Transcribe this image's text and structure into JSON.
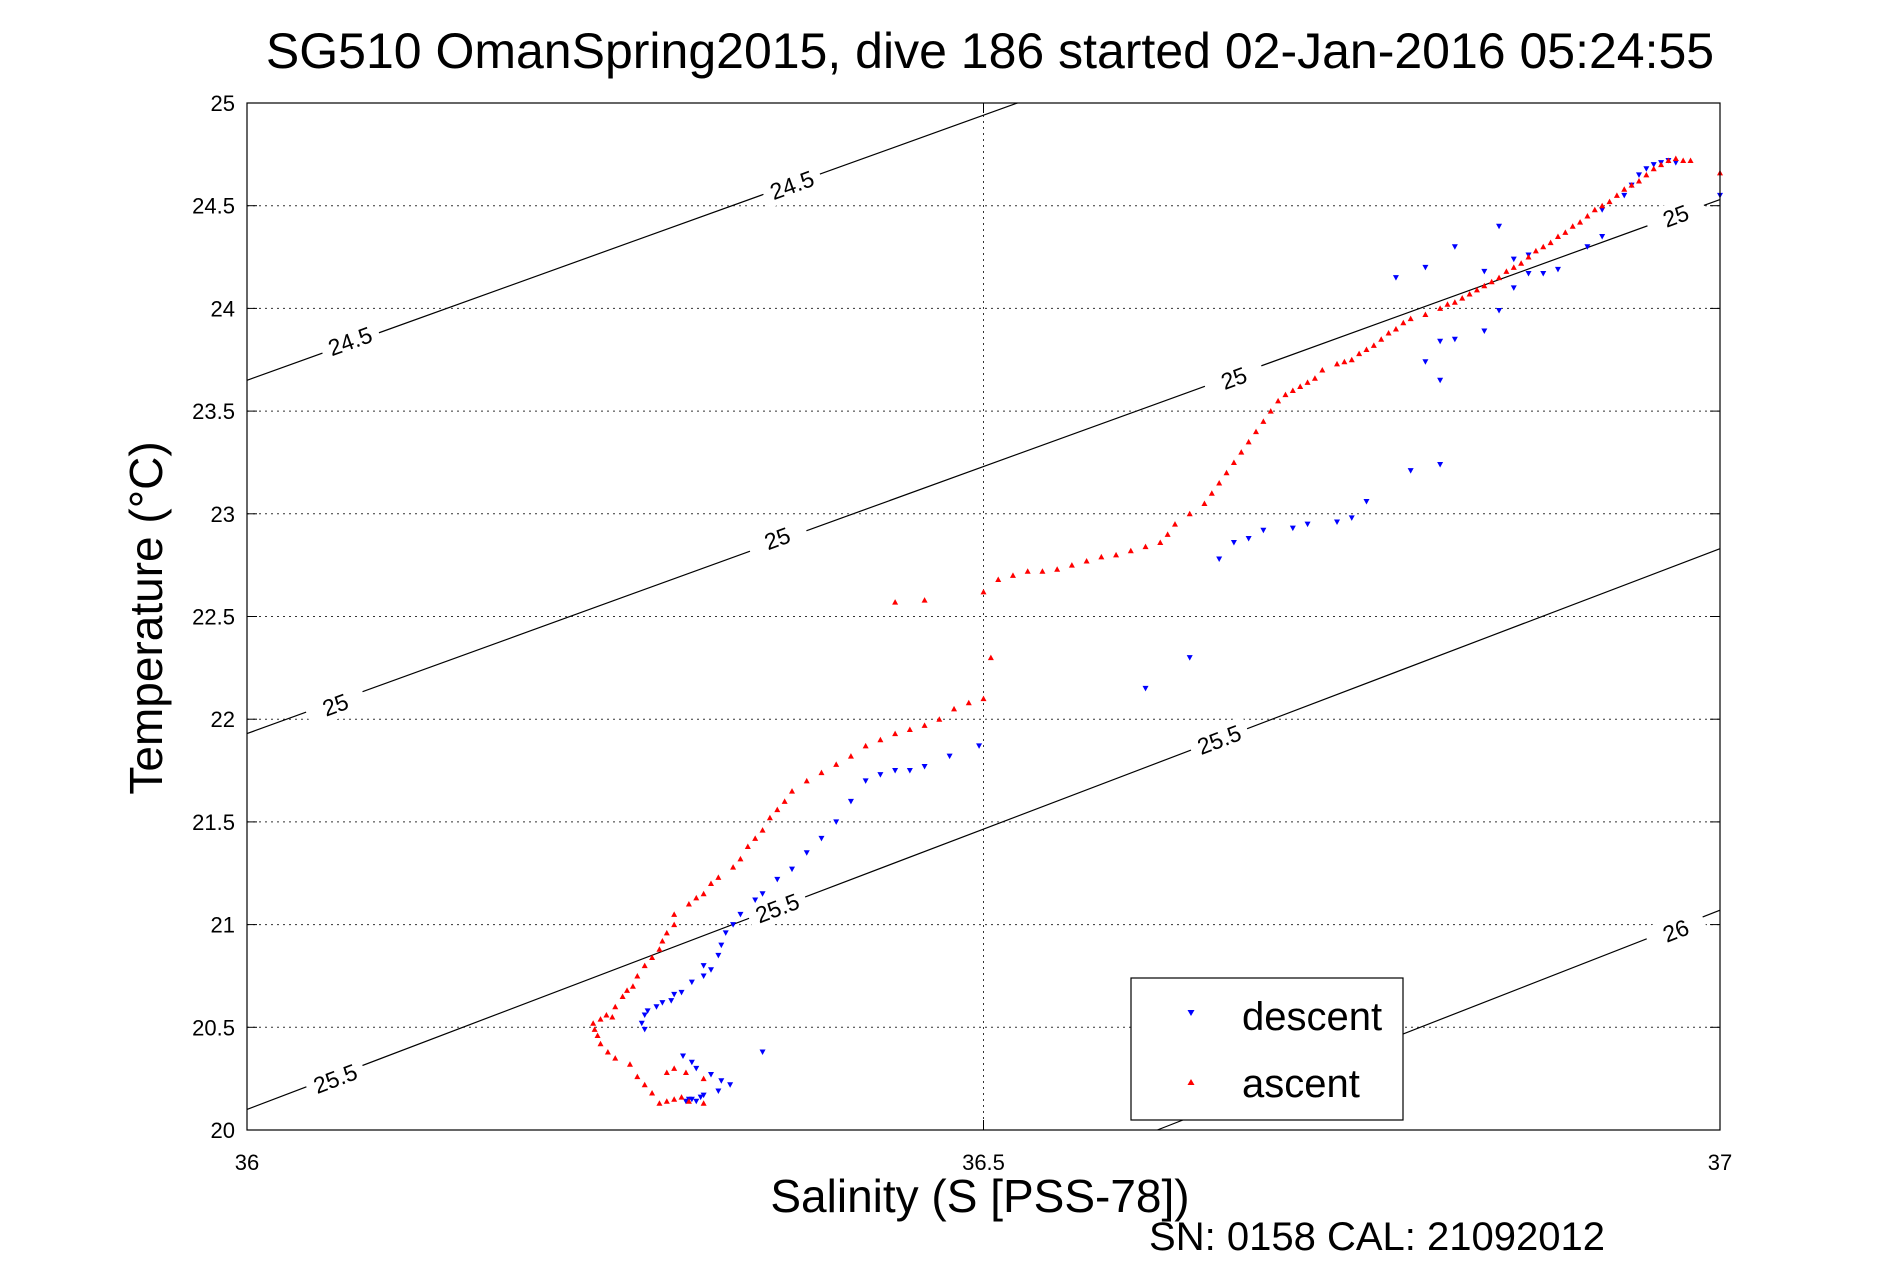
{
  "chart_data": {
    "type": "scatter",
    "title": "SG510 OmanSpring2015, dive 186 started 02-Jan-2016 05:24:55",
    "xlabel": "Salinity (S [PSS-78])",
    "ylabel": "Temperature (°C)",
    "footer": "SN: 0158  CAL: 21092012",
    "xlim": [
      36,
      37
    ],
    "ylim": [
      20,
      25
    ],
    "xticks": [
      "36",
      "36.5",
      "37"
    ],
    "xtick_values": [
      36,
      36.5,
      37
    ],
    "yticks": [
      "20",
      "20.5",
      "21",
      "21.5",
      "22",
      "22.5",
      "23",
      "23.5",
      "24",
      "24.5",
      "25"
    ],
    "ytick_values": [
      20,
      20.5,
      21,
      21.5,
      22,
      22.5,
      23,
      23.5,
      24,
      24.5,
      25
    ],
    "grid": true,
    "legend_position": "bottom-right",
    "contours": [
      {
        "level": "24.5",
        "line": [
          [
            36.0,
            23.65
          ],
          [
            36.523,
            25.0
          ]
        ],
        "labels": [
          [
            36.07,
            23.84
          ],
          [
            36.37,
            24.6
          ]
        ]
      },
      {
        "level": "25",
        "line": [
          [
            36.0,
            21.93
          ],
          [
            37.0,
            24.53
          ]
        ],
        "labels": [
          [
            36.06,
            22.07
          ],
          [
            36.36,
            22.88
          ],
          [
            36.67,
            23.66
          ],
          [
            36.97,
            24.45
          ]
        ]
      },
      {
        "level": "25.5",
        "line": [
          [
            36.0,
            20.1
          ],
          [
            37.0,
            22.83
          ]
        ],
        "labels": [
          [
            36.06,
            20.25
          ],
          [
            36.36,
            21.08
          ],
          [
            36.66,
            21.9
          ]
        ]
      },
      {
        "level": "26",
        "line": [
          [
            36.618,
            20.0
          ],
          [
            37.0,
            21.07
          ]
        ],
        "labels": [
          [
            36.97,
            20.97
          ]
        ]
      }
    ],
    "series": [
      {
        "name": "descent",
        "color": "#0000ff",
        "marker": "triangle-down",
        "points": [
          [
            36.298,
            20.14
          ],
          [
            36.302,
            20.15
          ],
          [
            36.305,
            20.14
          ],
          [
            36.308,
            20.16
          ],
          [
            36.3,
            20.15
          ],
          [
            36.31,
            20.17
          ],
          [
            36.32,
            20.19
          ],
          [
            36.328,
            20.22
          ],
          [
            36.322,
            20.24
          ],
          [
            36.315,
            20.27
          ],
          [
            36.305,
            20.3
          ],
          [
            36.302,
            20.33
          ],
          [
            36.35,
            20.38
          ],
          [
            36.296,
            20.36
          ],
          [
            36.27,
            20.49
          ],
          [
            36.268,
            20.52
          ],
          [
            36.27,
            20.56
          ],
          [
            36.272,
            20.58
          ],
          [
            36.278,
            20.6
          ],
          [
            36.282,
            20.62
          ],
          [
            36.288,
            20.63
          ],
          [
            36.29,
            20.66
          ],
          [
            36.295,
            20.67
          ],
          [
            36.302,
            20.72
          ],
          [
            36.31,
            20.75
          ],
          [
            36.315,
            20.78
          ],
          [
            36.31,
            20.8
          ],
          [
            36.32,
            20.85
          ],
          [
            36.322,
            20.9
          ],
          [
            36.325,
            20.96
          ],
          [
            36.33,
            21.0
          ],
          [
            36.335,
            21.05
          ],
          [
            36.345,
            21.12
          ],
          [
            36.35,
            21.15
          ],
          [
            36.36,
            21.22
          ],
          [
            36.37,
            21.27
          ],
          [
            36.38,
            21.35
          ],
          [
            36.39,
            21.42
          ],
          [
            36.4,
            21.5
          ],
          [
            36.41,
            21.6
          ],
          [
            36.42,
            21.7
          ],
          [
            36.43,
            21.73
          ],
          [
            36.44,
            21.75
          ],
          [
            36.45,
            21.75
          ],
          [
            36.46,
            21.77
          ],
          [
            36.477,
            21.82
          ],
          [
            36.497,
            21.87
          ],
          [
            36.61,
            22.15
          ],
          [
            36.64,
            22.3
          ],
          [
            36.66,
            22.78
          ],
          [
            36.67,
            22.86
          ],
          [
            36.68,
            22.88
          ],
          [
            36.69,
            22.92
          ],
          [
            36.71,
            22.93
          ],
          [
            36.72,
            22.95
          ],
          [
            36.74,
            22.96
          ],
          [
            36.75,
            22.98
          ],
          [
            36.76,
            23.06
          ],
          [
            36.79,
            23.21
          ],
          [
            36.81,
            23.24
          ],
          [
            36.8,
            23.74
          ],
          [
            36.81,
            23.84
          ],
          [
            36.81,
            23.65
          ],
          [
            36.82,
            23.85
          ],
          [
            36.84,
            23.89
          ],
          [
            36.85,
            23.99
          ],
          [
            36.86,
            24.1
          ],
          [
            36.87,
            24.17
          ],
          [
            36.88,
            24.17
          ],
          [
            36.89,
            24.19
          ],
          [
            36.91,
            24.3
          ],
          [
            36.92,
            24.35
          ],
          [
            36.86,
            24.24
          ],
          [
            36.87,
            24.26
          ],
          [
            36.84,
            24.18
          ],
          [
            36.8,
            24.2
          ],
          [
            36.78,
            24.15
          ],
          [
            36.82,
            24.3
          ],
          [
            36.85,
            24.4
          ],
          [
            36.92,
            24.48
          ],
          [
            36.935,
            24.55
          ],
          [
            36.94,
            24.6
          ],
          [
            36.945,
            24.65
          ],
          [
            36.95,
            24.68
          ],
          [
            36.955,
            24.7
          ],
          [
            36.96,
            24.71
          ],
          [
            36.965,
            24.72
          ],
          [
            36.97,
            24.71
          ],
          [
            37.0,
            24.55
          ]
        ]
      },
      {
        "name": "ascent",
        "color": "#ff0000",
        "marker": "triangle-up",
        "points": [
          [
            36.28,
            20.13
          ],
          [
            36.285,
            20.14
          ],
          [
            36.29,
            20.15
          ],
          [
            36.295,
            20.16
          ],
          [
            36.3,
            20.14
          ],
          [
            36.31,
            20.13
          ],
          [
            36.275,
            20.18
          ],
          [
            36.27,
            20.22
          ],
          [
            36.265,
            20.26
          ],
          [
            36.285,
            20.28
          ],
          [
            36.29,
            20.3
          ],
          [
            36.298,
            20.28
          ],
          [
            36.31,
            20.25
          ],
          [
            36.26,
            20.32
          ],
          [
            36.25,
            20.35
          ],
          [
            36.245,
            20.38
          ],
          [
            36.24,
            20.42
          ],
          [
            36.238,
            20.46
          ],
          [
            36.236,
            20.49
          ],
          [
            36.235,
            20.52
          ],
          [
            36.24,
            20.54
          ],
          [
            36.248,
            20.55
          ],
          [
            36.244,
            20.56
          ],
          [
            36.25,
            20.6
          ],
          [
            36.255,
            20.65
          ],
          [
            36.258,
            20.68
          ],
          [
            36.262,
            20.7
          ],
          [
            36.265,
            20.75
          ],
          [
            36.27,
            20.8
          ],
          [
            36.275,
            20.84
          ],
          [
            36.28,
            20.88
          ],
          [
            36.282,
            20.92
          ],
          [
            36.285,
            20.96
          ],
          [
            36.29,
            21.0
          ],
          [
            36.29,
            21.05
          ],
          [
            36.3,
            21.1
          ],
          [
            36.305,
            21.13
          ],
          [
            36.31,
            21.15
          ],
          [
            36.315,
            21.2
          ],
          [
            36.32,
            21.23
          ],
          [
            36.33,
            21.28
          ],
          [
            36.335,
            21.32
          ],
          [
            36.34,
            21.38
          ],
          [
            36.345,
            21.42
          ],
          [
            36.35,
            21.46
          ],
          [
            36.355,
            21.52
          ],
          [
            36.36,
            21.56
          ],
          [
            36.365,
            21.6
          ],
          [
            36.37,
            21.65
          ],
          [
            36.38,
            21.7
          ],
          [
            36.39,
            21.74
          ],
          [
            36.4,
            21.78
          ],
          [
            36.41,
            21.82
          ],
          [
            36.42,
            21.87
          ],
          [
            36.43,
            21.9
          ],
          [
            36.44,
            21.93
          ],
          [
            36.45,
            21.95
          ],
          [
            36.46,
            21.97
          ],
          [
            36.47,
            22.0
          ],
          [
            36.48,
            22.05
          ],
          [
            36.49,
            22.08
          ],
          [
            36.5,
            22.1
          ],
          [
            36.505,
            22.3
          ],
          [
            36.44,
            22.57
          ],
          [
            36.46,
            22.58
          ],
          [
            36.5,
            22.62
          ],
          [
            36.51,
            22.68
          ],
          [
            36.52,
            22.7
          ],
          [
            36.53,
            22.72
          ],
          [
            36.54,
            22.72
          ],
          [
            36.55,
            22.73
          ],
          [
            36.56,
            22.75
          ],
          [
            36.57,
            22.77
          ],
          [
            36.58,
            22.79
          ],
          [
            36.59,
            22.8
          ],
          [
            36.6,
            22.82
          ],
          [
            36.61,
            22.84
          ],
          [
            36.62,
            22.86
          ],
          [
            36.625,
            22.9
          ],
          [
            36.63,
            22.95
          ],
          [
            36.64,
            23.0
          ],
          [
            36.65,
            23.05
          ],
          [
            36.655,
            23.1
          ],
          [
            36.66,
            23.15
          ],
          [
            36.665,
            23.2
          ],
          [
            36.67,
            23.25
          ],
          [
            36.675,
            23.3
          ],
          [
            36.68,
            23.35
          ],
          [
            36.685,
            23.4
          ],
          [
            36.69,
            23.45
          ],
          [
            36.695,
            23.5
          ],
          [
            36.7,
            23.55
          ],
          [
            36.705,
            23.58
          ],
          [
            36.71,
            23.6
          ],
          [
            36.715,
            23.62
          ],
          [
            36.72,
            23.64
          ],
          [
            36.725,
            23.66
          ],
          [
            36.73,
            23.7
          ],
          [
            36.74,
            23.73
          ],
          [
            36.745,
            23.74
          ],
          [
            36.75,
            23.75
          ],
          [
            36.755,
            23.78
          ],
          [
            36.76,
            23.8
          ],
          [
            36.765,
            23.82
          ],
          [
            36.77,
            23.85
          ],
          [
            36.775,
            23.88
          ],
          [
            36.78,
            23.9
          ],
          [
            36.785,
            23.93
          ],
          [
            36.79,
            23.95
          ],
          [
            36.8,
            23.97
          ],
          [
            36.81,
            24.0
          ],
          [
            36.815,
            24.02
          ],
          [
            36.82,
            24.03
          ],
          [
            36.825,
            24.05
          ],
          [
            36.83,
            24.07
          ],
          [
            36.835,
            24.09
          ],
          [
            36.84,
            24.11
          ],
          [
            36.845,
            24.13
          ],
          [
            36.85,
            24.15
          ],
          [
            36.855,
            24.18
          ],
          [
            36.86,
            24.2
          ],
          [
            36.865,
            24.22
          ],
          [
            36.87,
            24.25
          ],
          [
            36.875,
            24.28
          ],
          [
            36.88,
            24.3
          ],
          [
            36.885,
            24.32
          ],
          [
            36.89,
            24.35
          ],
          [
            36.895,
            24.37
          ],
          [
            36.9,
            24.4
          ],
          [
            36.905,
            24.42
          ],
          [
            36.91,
            24.45
          ],
          [
            36.915,
            24.48
          ],
          [
            36.92,
            24.5
          ],
          [
            36.925,
            24.52
          ],
          [
            36.93,
            24.55
          ],
          [
            36.935,
            24.58
          ],
          [
            36.94,
            24.6
          ],
          [
            36.945,
            24.62
          ],
          [
            36.95,
            24.65
          ],
          [
            36.955,
            24.68
          ],
          [
            36.96,
            24.7
          ],
          [
            36.965,
            24.72
          ],
          [
            36.97,
            24.73
          ],
          [
            36.975,
            24.72
          ],
          [
            36.98,
            24.72
          ],
          [
            37.0,
            24.66
          ]
        ]
      }
    ]
  }
}
